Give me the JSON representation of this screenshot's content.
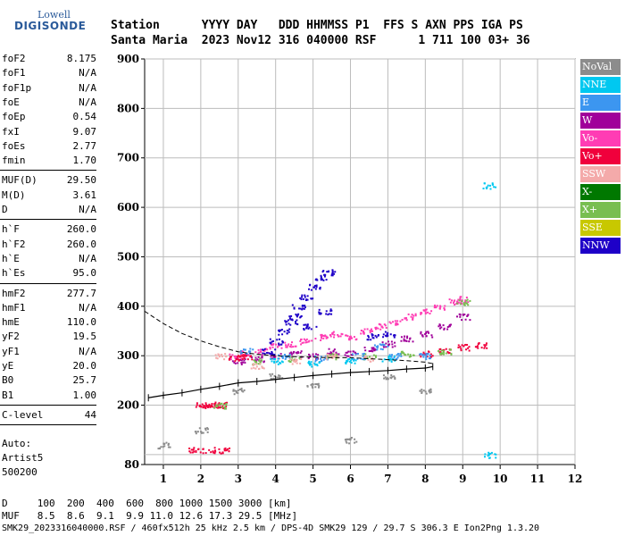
{
  "logo": {
    "line1": "Lowell",
    "line2": "DIGISONDE"
  },
  "header": {
    "row1": "Station      YYYY DAY   DDD HHMMSS P1  FFS S AXN PPS IGA PS",
    "row2": "Santa Maria  2023 Nov12 316 040000 RSF      1 711 100 03+ 36"
  },
  "params": {
    "group1": [
      {
        "label": "foF2",
        "value": "8.175"
      },
      {
        "label": "foF1",
        "value": "N/A"
      },
      {
        "label": "foF1p",
        "value": "N/A"
      },
      {
        "label": "foE",
        "value": "N/A"
      },
      {
        "label": "foEp",
        "value": "0.54"
      },
      {
        "label": "fxI",
        "value": "9.07"
      },
      {
        "label": "foEs",
        "value": "2.77"
      },
      {
        "label": "fmin",
        "value": "1.70"
      }
    ],
    "group2": [
      {
        "label": "MUF(D)",
        "value": "29.50"
      },
      {
        "label": "M(D)",
        "value": "3.61"
      },
      {
        "label": "D",
        "value": "N/A"
      }
    ],
    "group3": [
      {
        "label": "h`F",
        "value": "260.0"
      },
      {
        "label": "h`F2",
        "value": "260.0"
      },
      {
        "label": "h`E",
        "value": "N/A"
      },
      {
        "label": "h`Es",
        "value": "95.0"
      }
    ],
    "group4": [
      {
        "label": "hmF2",
        "value": "277.7"
      },
      {
        "label": "hmF1",
        "value": "N/A"
      },
      {
        "label": "hmE",
        "value": "110.0"
      },
      {
        "label": "yF2",
        "value": "19.5"
      },
      {
        "label": "yF1",
        "value": "N/A"
      },
      {
        "label": "yE",
        "value": "20.0"
      },
      {
        "label": "B0",
        "value": "25.7"
      },
      {
        "label": "B1",
        "value": "1.00"
      }
    ],
    "group5": [
      {
        "label": "C-level",
        "value": "44"
      }
    ],
    "auto": {
      "label": "Auto:",
      "name": "Artist5",
      "code": "500200"
    }
  },
  "legend": [
    {
      "label": "NoVal",
      "color": "#8c8c8c"
    },
    {
      "label": "NNE",
      "color": "#00c8f0"
    },
    {
      "label": "E",
      "color": "#3c96f0"
    },
    {
      "label": "W",
      "color": "#a0009a"
    },
    {
      "label": "Vo-",
      "color": "#ff3cb4"
    },
    {
      "label": "Vo+",
      "color": "#f0003c"
    },
    {
      "label": "SSW",
      "color": "#f4aaaa"
    },
    {
      "label": "X-",
      "color": "#007800"
    },
    {
      "label": "X+",
      "color": "#78be50"
    },
    {
      "label": "SSE",
      "color": "#c8c800"
    },
    {
      "label": "NNW",
      "color": "#1e00c8"
    }
  ],
  "footer": {
    "row1": "D     100  200  400  600  800 1000 1500 3000 [km]",
    "row2": "MUF   8.5  8.6  9.1  9.9 11.0 12.6 17.3 29.5 [MHz]",
    "row3": "SMK29_2023316040000.RSF / 460fx512h 25 kHz 2.5 km / DPS-4D SMK29 129 / 29.7 S 306.3 E Ion2Png 1.3.20"
  },
  "chart_data": {
    "type": "scatter",
    "title": "",
    "xlabel": "",
    "ylabel": "",
    "xlim": [
      0.5,
      12
    ],
    "ylim": [
      80,
      900
    ],
    "x_ticks": [
      1,
      2,
      3,
      4,
      5,
      6,
      7,
      8,
      9,
      10,
      11,
      12
    ],
    "y_ticks": [
      100,
      200,
      300,
      400,
      500,
      600,
      700,
      800,
      900
    ],
    "y_labels": [
      "80",
      "200",
      "300",
      "400",
      "500",
      "600",
      "700",
      "800",
      "900"
    ],
    "y_label_values": [
      80,
      200,
      300,
      400,
      500,
      600,
      700,
      800,
      900
    ],
    "profile_line": {
      "x": [
        0.6,
        1.0,
        1.5,
        2.0,
        2.5,
        3.0,
        3.5,
        4.0,
        4.5,
        5.0,
        5.5,
        6.0,
        6.5,
        7.0,
        7.5,
        8.0,
        8.2
      ],
      "y": [
        215,
        220,
        225,
        232,
        238,
        245,
        248,
        252,
        256,
        260,
        263,
        266,
        268,
        270,
        273,
        275,
        278
      ]
    },
    "dashed_line": {
      "x": [
        0.5,
        1.0,
        1.5,
        2.0,
        2.5,
        3.0,
        3.5,
        4.0,
        4.5,
        5.0,
        5.5,
        6.0,
        6.5,
        7.0,
        7.5,
        8.0,
        8.2
      ],
      "y": [
        390,
        365,
        345,
        330,
        318,
        308,
        303,
        300,
        298,
        297,
        296,
        296,
        294,
        292,
        290,
        287,
        284
      ]
    },
    "series": [
      {
        "name": "Vo-",
        "color": "#ff3cb4",
        "points": [
          [
            2.9,
            300
          ],
          [
            3.2,
            305
          ],
          [
            3.6,
            310
          ],
          [
            4.0,
            320
          ],
          [
            4.4,
            325
          ],
          [
            4.8,
            330
          ],
          [
            5.2,
            338
          ],
          [
            5.6,
            345
          ],
          [
            6.0,
            340
          ],
          [
            6.4,
            350
          ],
          [
            6.8,
            360
          ],
          [
            7.2,
            370
          ],
          [
            7.6,
            380
          ],
          [
            8.0,
            390
          ],
          [
            8.4,
            400
          ],
          [
            8.8,
            410
          ],
          [
            9.0,
            415
          ]
        ]
      },
      {
        "name": "W",
        "color": "#a0009a",
        "points": [
          [
            3.0,
            290
          ],
          [
            3.5,
            295
          ],
          [
            4.0,
            300
          ],
          [
            4.5,
            305
          ],
          [
            5.0,
            300
          ],
          [
            5.5,
            310
          ],
          [
            6.0,
            305
          ],
          [
            6.5,
            315
          ],
          [
            7.0,
            325
          ],
          [
            7.5,
            335
          ],
          [
            8.0,
            345
          ],
          [
            8.5,
            360
          ],
          [
            9.0,
            380
          ]
        ]
      },
      {
        "name": "NNW",
        "color": "#1e00c8",
        "points": [
          [
            4.0,
            330
          ],
          [
            4.2,
            350
          ],
          [
            4.4,
            370
          ],
          [
            4.6,
            400
          ],
          [
            4.8,
            420
          ],
          [
            5.0,
            440
          ],
          [
            5.2,
            460
          ],
          [
            5.4,
            470
          ],
          [
            4.5,
            380
          ],
          [
            4.9,
            360
          ],
          [
            5.3,
            390
          ],
          [
            3.8,
            310
          ],
          [
            6.6,
            340
          ],
          [
            7.0,
            345
          ]
        ]
      },
      {
        "name": "Vo+",
        "color": "#f0003c",
        "points": [
          [
            2.0,
            200
          ],
          [
            2.2,
            202
          ],
          [
            2.4,
            200
          ],
          [
            2.6,
            201
          ],
          [
            1.8,
            112
          ],
          [
            2.2,
            110
          ],
          [
            2.6,
            110
          ],
          [
            2.9,
            296
          ],
          [
            3.2,
            300
          ],
          [
            8.0,
            305
          ],
          [
            8.5,
            310
          ],
          [
            9.0,
            318
          ],
          [
            9.5,
            322
          ]
        ]
      },
      {
        "name": "X+",
        "color": "#78be50",
        "points": [
          [
            2.5,
            200
          ],
          [
            3.5,
            290
          ],
          [
            4.5,
            295
          ],
          [
            5.5,
            300
          ],
          [
            6.5,
            300
          ],
          [
            7.5,
            305
          ],
          [
            8.5,
            310
          ],
          [
            9.0,
            410
          ]
        ]
      },
      {
        "name": "E",
        "color": "#3c96f0",
        "points": [
          [
            3.2,
            310
          ],
          [
            4.2,
            300
          ],
          [
            5.2,
            295
          ],
          [
            6.2,
            300
          ],
          [
            7.2,
            300
          ],
          [
            6.8,
            320
          ],
          [
            8.0,
            300
          ]
        ]
      },
      {
        "name": "NNE",
        "color": "#00c8f0",
        "points": [
          [
            4.0,
            290
          ],
          [
            5.0,
            285
          ],
          [
            6.0,
            290
          ],
          [
            7.0,
            295
          ],
          [
            9.7,
            645
          ],
          [
            9.7,
            100
          ]
        ]
      },
      {
        "name": "SSW",
        "color": "#f4aaaa",
        "points": [
          [
            2.5,
            300
          ],
          [
            3.5,
            280
          ],
          [
            4.5,
            290
          ],
          [
            5.5,
            300
          ],
          [
            6.5,
            295
          ]
        ]
      },
      {
        "name": "NoVal",
        "color": "#8c8c8c",
        "points": [
          [
            1.0,
            120
          ],
          [
            2.0,
            150
          ],
          [
            3.0,
            230
          ],
          [
            4.0,
            260
          ],
          [
            5.0,
            240
          ],
          [
            6.0,
            130
          ],
          [
            7.0,
            260
          ],
          [
            8.0,
            230
          ]
        ]
      }
    ]
  }
}
